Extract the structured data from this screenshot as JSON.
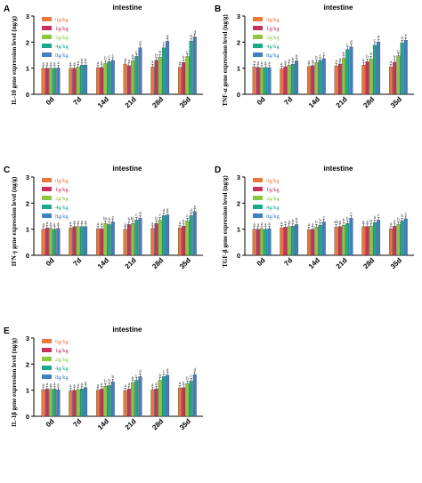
{
  "colors": {
    "0g/kg": "#e8783c",
    "1g/kg": "#c8325a",
    "2g/kg": "#8dc63f",
    "4g/kg": "#1ba98c",
    "8g/kg": "#3f7fc4",
    "axis": "#000000",
    "title": "#000000"
  },
  "chart_data": [
    {
      "type": "bar",
      "panel_letter": "A",
      "title": "intestine",
      "ylabel": "IL-10 gene expression level (ng/g)",
      "xlabel": "",
      "categories": [
        "0d",
        "7d",
        "14d",
        "21d",
        "28d",
        "35d"
      ],
      "ylim": [
        0,
        3
      ],
      "yticks": [
        "0",
        "1",
        "2",
        "3"
      ],
      "legend": {
        "placement": "top-left",
        "entries": [
          "0g/kg",
          "1g/kg",
          "2g/kg",
          "4g/kg",
          "8g/kg"
        ]
      },
      "series": [
        {
          "name": "0g/kg",
          "values": [
            1.0,
            1.0,
            1.02,
            1.16,
            1.05,
            1.03
          ],
          "labels": [
            "a",
            "a",
            "a",
            "a",
            "a",
            "a"
          ]
        },
        {
          "name": "1g/kg",
          "values": [
            1.0,
            1.0,
            1.03,
            1.1,
            1.3,
            1.22
          ],
          "labels": [
            "a",
            "a",
            "a",
            "a",
            "b",
            "b"
          ]
        },
        {
          "name": "2g/kg",
          "values": [
            1.0,
            1.05,
            1.18,
            1.28,
            1.42,
            1.45
          ],
          "labels": [
            "a",
            "a",
            "b",
            "b",
            "b",
            "c"
          ]
        },
        {
          "name": "4g/kg",
          "values": [
            1.0,
            1.12,
            1.25,
            1.45,
            1.78,
            2.04
          ],
          "labels": [
            "a",
            "b",
            "c",
            "c",
            "c",
            "d"
          ]
        },
        {
          "name": "8g/kg",
          "values": [
            1.01,
            1.12,
            1.3,
            1.78,
            2.03,
            2.2
          ],
          "labels": [
            "a",
            "b",
            "c",
            "d",
            "d",
            "d"
          ]
        }
      ]
    },
    {
      "type": "bar",
      "panel_letter": "B",
      "title": "intestine",
      "ylabel": "TNF-α gene expression level (ng/g)",
      "xlabel": "",
      "categories": [
        "0d",
        "7d",
        "14d",
        "21d",
        "28d",
        "35d"
      ],
      "ylim": [
        0,
        3
      ],
      "yticks": [
        "0",
        "1",
        "2",
        "3"
      ],
      "legend": {
        "placement": "top-left",
        "entries": [
          "0g/kg",
          "1g/kg",
          "2g/kg",
          "4g/kg",
          "8g/kg"
        ]
      },
      "series": [
        {
          "name": "0g/kg",
          "values": [
            1.05,
            0.98,
            1.07,
            1.08,
            1.12,
            1.05
          ],
          "labels": [
            "a",
            "a",
            "a",
            "a",
            "a",
            "a"
          ]
        },
        {
          "name": "1g/kg",
          "values": [
            1.03,
            1.06,
            1.1,
            1.16,
            1.25,
            1.23
          ],
          "labels": [
            "a",
            "a",
            "a",
            "a",
            "b",
            "b"
          ]
        },
        {
          "name": "2g/kg",
          "values": [
            1.02,
            1.12,
            1.22,
            1.38,
            1.35,
            1.48
          ],
          "labels": [
            "a",
            "a",
            "b",
            "b",
            "b",
            "c"
          ]
        },
        {
          "name": "4g/kg",
          "values": [
            1.03,
            1.15,
            1.3,
            1.72,
            1.88,
            1.97
          ],
          "labels": [
            "a",
            "b",
            "c",
            "c",
            "c",
            "d"
          ]
        },
        {
          "name": "8g/kg",
          "values": [
            1.02,
            1.28,
            1.37,
            1.82,
            2.0,
            2.07
          ],
          "labels": [
            "a",
            "b",
            "c",
            "d",
            "d",
            "e"
          ]
        }
      ]
    },
    {
      "type": "bar",
      "panel_letter": "C",
      "title": "intestine",
      "ylabel": "IFN-γ gene expression level (ng/g)",
      "xlabel": "",
      "categories": [
        "0d",
        "7d",
        "14d",
        "21d",
        "28d",
        "35d"
      ],
      "ylim": [
        0,
        3
      ],
      "yticks": [
        "0",
        "1",
        "2",
        "3"
      ],
      "legend": {
        "placement": "top-left",
        "entries": [
          "0g/kg",
          "1g/kg",
          "2g/kg",
          "4g/kg",
          "8g/kg"
        ]
      },
      "series": [
        {
          "name": "0g/kg",
          "values": [
            1.0,
            1.05,
            1.02,
            1.0,
            1.03,
            1.05
          ],
          "labels": [
            "a",
            "a",
            "a",
            "a",
            "a",
            "a"
          ]
        },
        {
          "name": "1g/kg",
          "values": [
            1.05,
            1.1,
            1.02,
            1.18,
            1.22,
            1.12
          ],
          "labels": [
            "a",
            "a",
            "a",
            "b",
            "b",
            "b"
          ]
        },
        {
          "name": "2g/kg",
          "values": [
            1.03,
            1.1,
            1.22,
            1.22,
            1.35,
            1.32
          ],
          "labels": [
            "a",
            "a",
            "bc",
            "bc",
            "c",
            "c"
          ]
        },
        {
          "name": "4g/kg",
          "values": [
            1.0,
            1.1,
            1.18,
            1.35,
            1.52,
            1.52
          ],
          "labels": [
            "a",
            "a",
            "b",
            "c",
            "d",
            "d"
          ]
        },
        {
          "name": "8g/kg",
          "values": [
            1.03,
            1.1,
            1.28,
            1.42,
            1.55,
            1.68
          ],
          "labels": [
            "a",
            "a",
            "c",
            "d",
            "d",
            "e"
          ]
        }
      ]
    },
    {
      "type": "bar",
      "panel_letter": "D",
      "title": "intestine",
      "ylabel": "TGF-β gene expression level (ng/g)",
      "xlabel": "",
      "categories": [
        "0d",
        "7d",
        "14d",
        "21d",
        "28d",
        "35d"
      ],
      "ylim": [
        0,
        3
      ],
      "yticks": [
        "0",
        "1",
        "2",
        "3"
      ],
      "legend": {
        "placement": "top-left",
        "entries": [
          "0g/kg",
          "1g/kg",
          "2g/kg",
          "4g/kg",
          "8g/kg"
        ]
      },
      "series": [
        {
          "name": "0g/kg",
          "values": [
            1.0,
            1.05,
            0.98,
            1.08,
            1.1,
            1.02
          ],
          "labels": [
            "a",
            "a",
            "a",
            "ab",
            "a",
            "a"
          ]
        },
        {
          "name": "1g/kg",
          "values": [
            1.0,
            1.08,
            1.0,
            1.1,
            1.1,
            1.12
          ],
          "labels": [
            "a",
            "a",
            "a",
            "a",
            "a",
            "a"
          ]
        },
        {
          "name": "2g/kg",
          "values": [
            1.02,
            1.1,
            1.08,
            1.15,
            1.12,
            1.18
          ],
          "labels": [
            "a",
            "a",
            "b",
            "b",
            "b",
            "b"
          ]
        },
        {
          "name": "4g/kg",
          "values": [
            1.0,
            1.12,
            1.15,
            1.22,
            1.25,
            1.32
          ],
          "labels": [
            "a",
            "b",
            "b",
            "b",
            "b",
            "b"
          ]
        },
        {
          "name": "8g/kg",
          "values": [
            1.02,
            1.18,
            1.28,
            1.42,
            1.35,
            1.4
          ],
          "labels": [
            "a",
            "b",
            "c",
            "c",
            "c",
            "c"
          ]
        }
      ]
    },
    {
      "type": "bar",
      "panel_letter": "E",
      "title": "intestine",
      "ylabel": "IL-1β gene expression level (ng/g)",
      "xlabel": "",
      "categories": [
        "0d",
        "7d",
        "14d",
        "21d",
        "28d",
        "35d"
      ],
      "ylim": [
        0,
        3
      ],
      "yticks": [
        "0",
        "1",
        "2",
        "3"
      ],
      "legend": {
        "placement": "top-left",
        "entries": [
          "0g/kg",
          "1g/kg",
          "2g/kg",
          "4g/kg",
          "8g/kg"
        ]
      },
      "series": [
        {
          "name": "0g/kg",
          "values": [
            1.02,
            0.98,
            1.0,
            0.98,
            1.02,
            1.08
          ],
          "labels": [
            "a",
            "a",
            "a",
            "a",
            "a",
            "a"
          ]
        },
        {
          "name": "1g/kg",
          "values": [
            1.05,
            1.0,
            1.05,
            1.05,
            1.05,
            1.1
          ],
          "labels": [
            "a",
            "a",
            "a",
            "a",
            "a",
            "a"
          ]
        },
        {
          "name": "2g/kg",
          "values": [
            1.03,
            1.02,
            1.15,
            1.28,
            1.38,
            1.25
          ],
          "labels": [
            "a",
            "a",
            "b",
            "b",
            "b",
            "b"
          ]
        },
        {
          "name": "4g/kg",
          "values": [
            1.05,
            1.05,
            1.18,
            1.38,
            1.52,
            1.35
          ],
          "labels": [
            "a",
            "a",
            "b",
            "c",
            "c",
            "c"
          ]
        },
        {
          "name": "8g/kg",
          "values": [
            1.02,
            1.1,
            1.32,
            1.52,
            1.58,
            1.6
          ],
          "labels": [
            "a",
            "a",
            "b",
            "d",
            "d",
            "d"
          ]
        }
      ]
    }
  ]
}
